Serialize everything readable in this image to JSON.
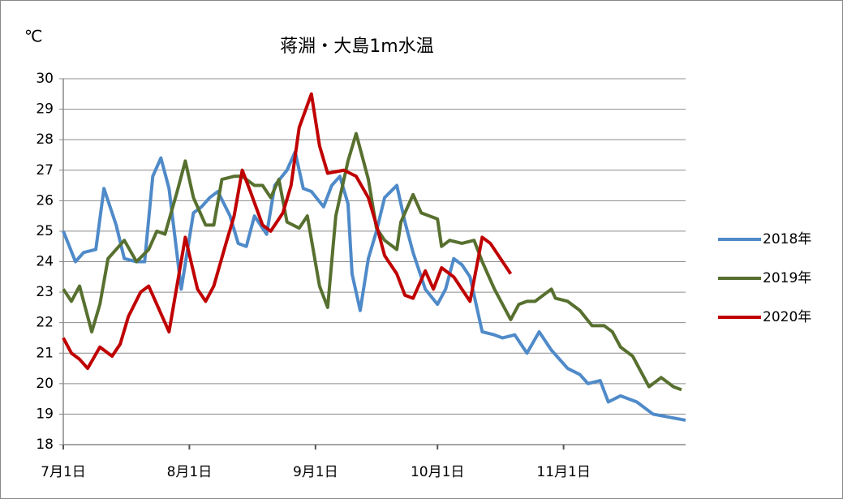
{
  "chart_data": {
    "type": "line",
    "title": "蒋淵・大島1m水温",
    "y_label": "℃",
    "xlim": [
      0,
      153
    ],
    "xticks": [
      {
        "value": 0,
        "label": "7月1日"
      },
      {
        "value": 31,
        "label": "8月1日"
      },
      {
        "value": 62,
        "label": "9月1日"
      },
      {
        "value": 92,
        "label": "10月1日"
      },
      {
        "value": 123,
        "label": "11月1日"
      }
    ],
    "ylim": [
      18,
      30
    ],
    "yticks": [
      18,
      19,
      20,
      21,
      22,
      23,
      24,
      25,
      26,
      27,
      28,
      29,
      30
    ],
    "grid": true,
    "legend": "right",
    "series": [
      {
        "name": "2018年",
        "color": "#4f8ac9",
        "x": [
          0,
          3,
          5,
          8,
          10,
          13,
          15,
          18,
          20,
          22,
          24,
          26,
          29,
          32,
          34,
          36,
          38,
          41,
          43,
          45,
          47,
          50,
          52,
          55,
          57,
          59,
          61,
          64,
          66,
          68,
          70,
          71,
          73,
          75,
          77,
          79,
          82,
          84,
          86,
          89,
          92,
          94,
          96,
          98,
          100,
          103,
          106,
          108,
          111,
          114,
          117,
          120,
          124,
          127,
          129,
          132,
          134,
          137,
          141,
          145,
          149,
          153
        ],
        "values": [
          25.0,
          24.0,
          24.3,
          24.4,
          26.4,
          25.2,
          24.1,
          24.0,
          24.0,
          26.8,
          27.4,
          26.4,
          23.1,
          25.6,
          25.8,
          26.1,
          26.3,
          25.5,
          24.6,
          24.5,
          25.5,
          24.9,
          26.5,
          27.0,
          27.6,
          26.4,
          26.3,
          25.8,
          26.5,
          26.8,
          25.9,
          23.6,
          22.4,
          24.1,
          25.0,
          26.1,
          26.5,
          25.3,
          24.3,
          23.1,
          22.6,
          23.1,
          24.1,
          23.9,
          23.5,
          21.7,
          21.6,
          21.5,
          21.6,
          21.0,
          21.7,
          21.1,
          20.5,
          20.3,
          20.0,
          20.1,
          19.4,
          19.6,
          19.4,
          19.0,
          18.9,
          18.8
        ]
      },
      {
        "name": "2019年",
        "color": "#57702f",
        "x": [
          0,
          2,
          4,
          7,
          9,
          11,
          13,
          15,
          18,
          21,
          23,
          25,
          28,
          30,
          32,
          35,
          37,
          39,
          42,
          44,
          47,
          49,
          51,
          53,
          55,
          58,
          60,
          63,
          65,
          67,
          70,
          72,
          75,
          77,
          79,
          82,
          83,
          86,
          88,
          92,
          93,
          95,
          98,
          101,
          103,
          106,
          110,
          112,
          114,
          116,
          120,
          121,
          124,
          127,
          130,
          133,
          135,
          137,
          140,
          144,
          147,
          150,
          152
        ],
        "values": [
          23.1,
          22.7,
          23.2,
          21.7,
          22.6,
          24.1,
          24.4,
          24.7,
          24.0,
          24.4,
          25.0,
          24.9,
          26.3,
          27.3,
          26.1,
          25.2,
          25.2,
          26.7,
          26.8,
          26.8,
          26.5,
          26.5,
          26.1,
          26.7,
          25.3,
          25.1,
          25.5,
          23.2,
          22.5,
          25.5,
          27.3,
          28.2,
          26.7,
          25.1,
          24.7,
          24.4,
          25.3,
          26.2,
          25.6,
          25.4,
          24.5,
          24.7,
          24.6,
          24.7,
          24.0,
          23.1,
          22.1,
          22.6,
          22.7,
          22.7,
          23.1,
          22.8,
          22.7,
          22.4,
          21.9,
          21.9,
          21.7,
          21.2,
          20.9,
          19.9,
          20.2,
          19.9,
          19.8
        ]
      },
      {
        "name": "2020年",
        "color": "#c00000",
        "x": [
          0,
          2,
          4,
          6,
          9,
          12,
          14,
          16,
          19,
          21,
          24,
          26,
          30,
          33,
          35,
          37,
          40,
          42,
          44,
          46,
          49,
          51,
          54,
          56,
          58,
          61,
          63,
          65,
          69,
          72,
          75,
          77,
          79,
          82,
          84,
          86,
          89,
          91,
          93,
          96,
          100,
          103,
          105,
          110
        ],
        "values": [
          21.5,
          21.0,
          20.8,
          20.5,
          21.2,
          20.9,
          21.3,
          22.2,
          23.0,
          23.2,
          22.3,
          21.7,
          24.8,
          23.1,
          22.7,
          23.2,
          24.6,
          25.5,
          27.0,
          26.3,
          25.2,
          25.0,
          25.6,
          26.5,
          28.4,
          29.5,
          27.8,
          26.9,
          27.0,
          26.8,
          26.1,
          25.2,
          24.2,
          23.6,
          22.9,
          22.8,
          23.7,
          23.1,
          23.8,
          23.5,
          22.7,
          24.8,
          24.6,
          23.6
        ]
      }
    ]
  }
}
